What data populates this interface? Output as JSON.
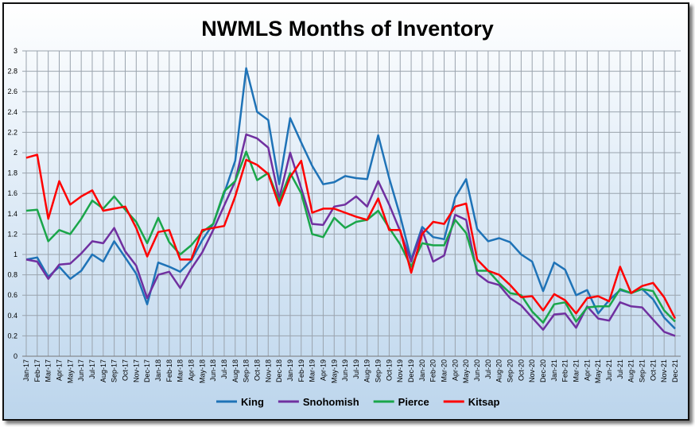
{
  "chart_data": {
    "type": "line",
    "title": "NWMLS Months of Inventory",
    "xlabel": "",
    "ylabel": "",
    "ylim": [
      0,
      3
    ],
    "yticks": [
      "0",
      "0.2",
      "0.4",
      "0.6",
      "0.8",
      "1",
      "1.2",
      "1.4",
      "1.6",
      "1.8",
      "2",
      "2.2",
      "2.4",
      "2.6",
      "2.8",
      "3"
    ],
    "grid": true,
    "legend": "bottom",
    "categories": [
      "Jan-17",
      "Feb-17",
      "Mar-17",
      "Apr-17",
      "May-17",
      "Jun-17",
      "Jul-17",
      "Aug-17",
      "Sep-17",
      "Oct-17",
      "Nov-17",
      "Dec-17",
      "Jan-18",
      "Feb-18",
      "Mar-18",
      "Apr-18",
      "May-18",
      "Jun-18",
      "Jul-18",
      "Aug-18",
      "Sep-18",
      "Oct-18",
      "Nov-18",
      "Dec-18",
      "Jan-19",
      "Feb-19",
      "Mar-19",
      "Apr-19",
      "May-19",
      "Jun-19",
      "Jul-19",
      "Aug-19",
      "Sep-19",
      "Oct-19",
      "Nov-19",
      "Dec-19",
      "Jan-20",
      "Feb-20",
      "Mar-20",
      "Apr-20",
      "May-20",
      "Jun-20",
      "Jul-20",
      "Aug-20",
      "Sep-20",
      "Oct-20",
      "Nov-20",
      "Dec-20",
      "Jan-21",
      "Feb-21",
      "Mar-21",
      "Apr-21",
      "May-21",
      "Jun-21",
      "Jul-21",
      "Aug-21",
      "Sep-21",
      "Oct-21",
      "Nov-21",
      "Dec-21"
    ],
    "series": [
      {
        "name": "King",
        "color": "#1f73b7",
        "values": [
          0.95,
          0.97,
          0.78,
          0.88,
          0.76,
          0.84,
          1.0,
          0.93,
          1.13,
          0.97,
          0.81,
          0.51,
          0.92,
          0.88,
          0.83,
          0.94,
          1.14,
          1.3,
          1.6,
          1.92,
          2.83,
          2.4,
          2.32,
          1.69,
          2.34,
          2.1,
          1.87,
          1.69,
          1.71,
          1.77,
          1.75,
          1.74,
          2.17,
          1.75,
          1.38,
          0.95,
          1.27,
          1.17,
          1.15,
          1.56,
          1.74,
          1.25,
          1.13,
          1.16,
          1.12,
          1.0,
          0.93,
          0.64,
          0.92,
          0.85,
          0.6,
          0.65,
          0.42,
          0.55,
          0.65,
          0.62,
          0.66,
          0.56,
          0.38,
          0.27
        ]
      },
      {
        "name": "Snohomish",
        "color": "#7030a0",
        "values": [
          0.95,
          0.93,
          0.76,
          0.9,
          0.91,
          1.01,
          1.13,
          1.11,
          1.26,
          1.03,
          0.89,
          0.57,
          0.8,
          0.83,
          0.67,
          0.86,
          1.02,
          1.24,
          1.48,
          1.72,
          2.18,
          2.14,
          2.05,
          1.55,
          2.0,
          1.65,
          1.3,
          1.29,
          1.47,
          1.49,
          1.57,
          1.47,
          1.72,
          1.49,
          1.23,
          0.93,
          1.24,
          0.93,
          0.99,
          1.39,
          1.34,
          0.81,
          0.73,
          0.7,
          0.57,
          0.5,
          0.38,
          0.26,
          0.41,
          0.42,
          0.28,
          0.49,
          0.37,
          0.35,
          0.53,
          0.49,
          0.48,
          0.36,
          0.24,
          0.2
        ]
      },
      {
        "name": "Pierce",
        "color": "#1aa64a",
        "values": [
          1.43,
          1.44,
          1.13,
          1.24,
          1.2,
          1.35,
          1.53,
          1.45,
          1.57,
          1.44,
          1.32,
          1.11,
          1.36,
          1.12,
          1.0,
          1.09,
          1.22,
          1.3,
          1.62,
          1.72,
          2.01,
          1.73,
          1.8,
          1.52,
          1.8,
          1.6,
          1.2,
          1.17,
          1.36,
          1.26,
          1.32,
          1.34,
          1.43,
          1.26,
          1.1,
          0.88,
          1.11,
          1.09,
          1.09,
          1.34,
          1.21,
          0.84,
          0.84,
          0.72,
          0.62,
          0.6,
          0.44,
          0.33,
          0.51,
          0.53,
          0.34,
          0.48,
          0.49,
          0.49,
          0.66,
          0.62,
          0.66,
          0.64,
          0.45,
          0.34
        ]
      },
      {
        "name": "Kitsap",
        "color": "#ff0000",
        "values": [
          1.95,
          1.98,
          1.35,
          1.72,
          1.49,
          1.57,
          1.63,
          1.43,
          1.45,
          1.47,
          1.26,
          0.98,
          1.22,
          1.24,
          0.95,
          0.95,
          1.24,
          1.26,
          1.28,
          1.57,
          1.93,
          1.88,
          1.79,
          1.48,
          1.76,
          1.92,
          1.41,
          1.45,
          1.45,
          1.41,
          1.37,
          1.34,
          1.55,
          1.24,
          1.24,
          0.82,
          1.2,
          1.32,
          1.3,
          1.47,
          1.5,
          0.95,
          0.84,
          0.8,
          0.7,
          0.58,
          0.59,
          0.45,
          0.61,
          0.55,
          0.42,
          0.57,
          0.59,
          0.54,
          0.88,
          0.62,
          0.69,
          0.72,
          0.58,
          0.37
        ]
      }
    ]
  }
}
